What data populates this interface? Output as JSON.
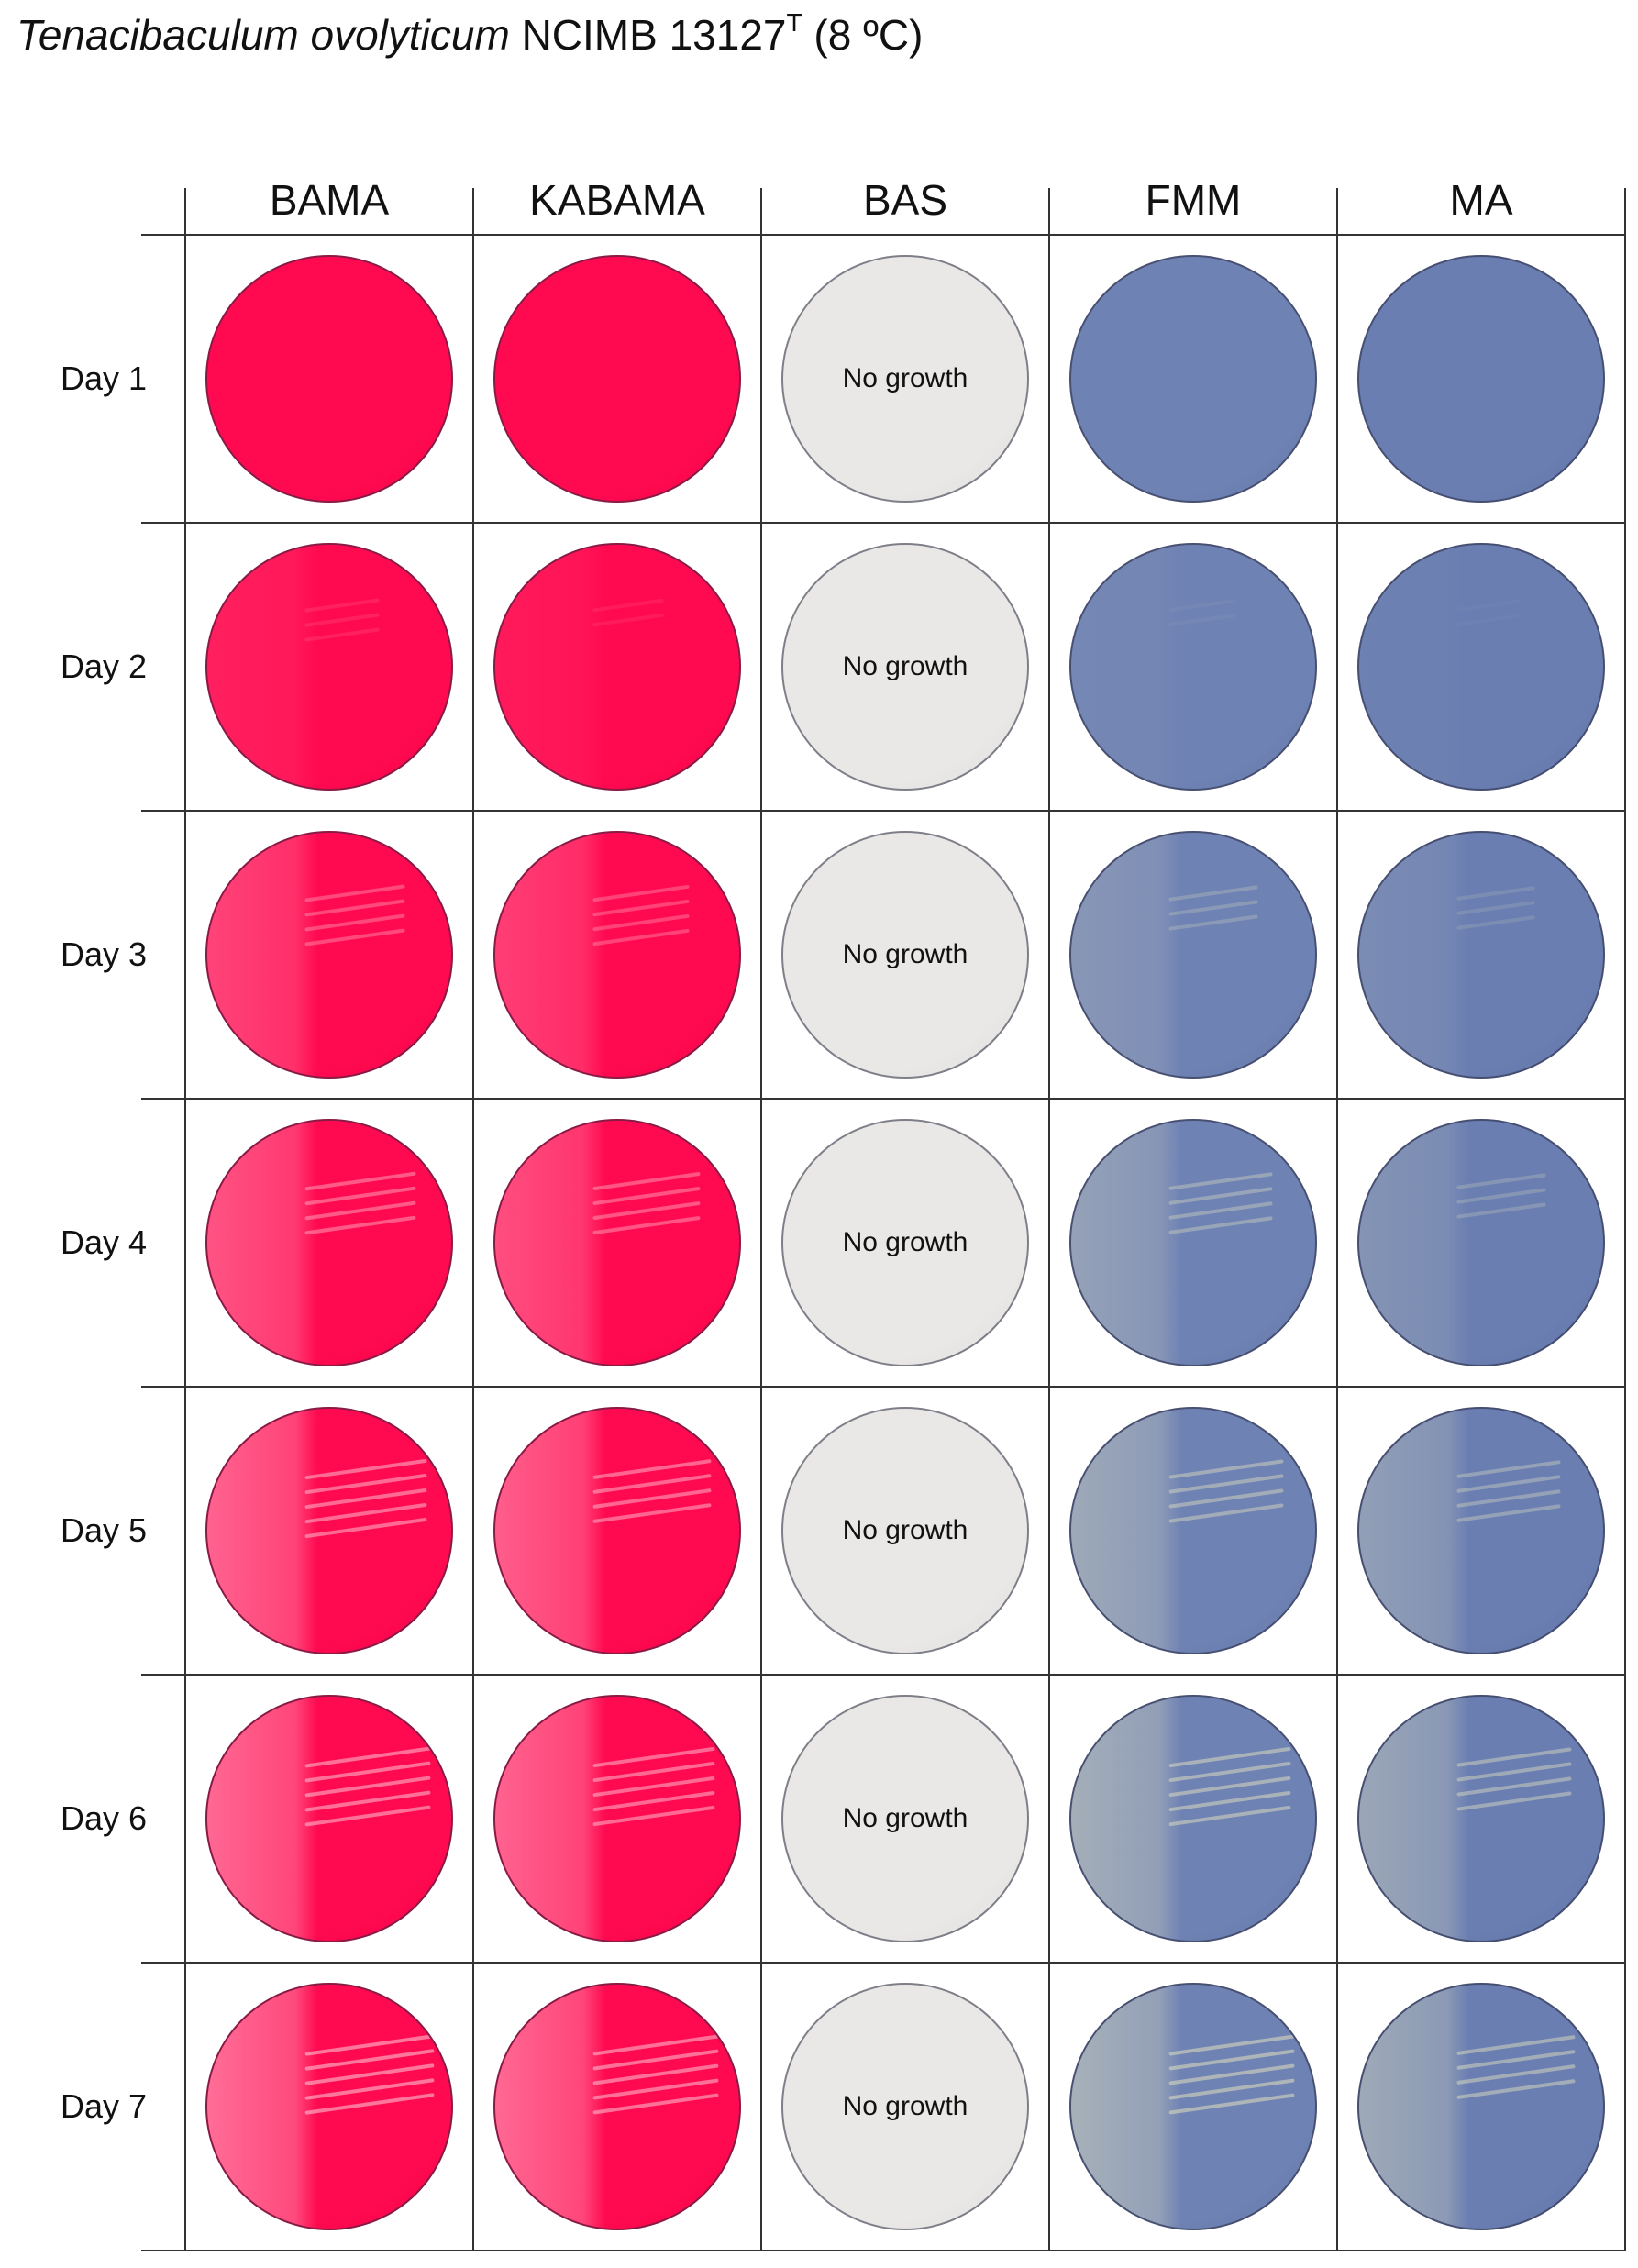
{
  "title": {
    "species": "Tenacibaculum ovolyticum",
    "strain": "NCIMB 13127",
    "superscript": "T",
    "condition": "(8 ºC)"
  },
  "columns": [
    "BAMA",
    "KABAMA",
    "BAS",
    "FMM",
    "MA"
  ],
  "rows": [
    "Day 1",
    "Day 2",
    "Day 3",
    "Day 4",
    "Day 5",
    "Day 6",
    "Day 7"
  ],
  "no_growth_label": "No growth",
  "colors": {
    "bama": "#ff0a50",
    "kabama": "#ff0a50",
    "bas": "#e9e8e6",
    "fmm": "#6f82b4",
    "ma": "#6a7eb2",
    "grid": "#333333"
  },
  "growth": {
    "BAMA": [
      0.0,
      0.2,
      0.55,
      0.7,
      0.85,
      0.9,
      0.95
    ],
    "KABAMA": [
      0.0,
      0.15,
      0.5,
      0.65,
      0.8,
      0.85,
      0.9
    ],
    "BAS": [
      0,
      0,
      0,
      0,
      0,
      0,
      0
    ],
    "FMM": [
      0.0,
      0.1,
      0.4,
      0.6,
      0.75,
      0.85,
      0.9
    ],
    "MA": [
      0.0,
      0.05,
      0.25,
      0.4,
      0.6,
      0.75,
      0.8
    ]
  }
}
